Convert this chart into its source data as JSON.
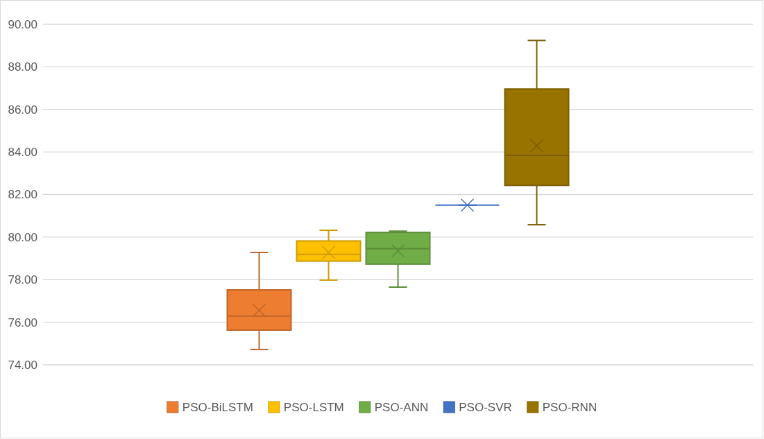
{
  "chart_data": {
    "type": "box",
    "categories": [
      null
    ],
    "series": [
      {
        "name": "PSO-BiLSTM",
        "color": "#ed7d31",
        "boxes": [
          {
            "low": 74.72,
            "q1": 75.63,
            "median": 76.29,
            "q3": 77.52,
            "high": 79.28,
            "mean": 76.56
          }
        ]
      },
      {
        "name": "PSO-LSTM",
        "color": "#ffc000",
        "boxes": [
          {
            "low": 77.98,
            "q1": 78.87,
            "median": 79.19,
            "q3": 79.82,
            "high": 80.32,
            "mean": 79.28
          }
        ]
      },
      {
        "name": "PSO-ANN",
        "color": "#70ad47",
        "boxes": [
          {
            "low": 77.65,
            "q1": 78.73,
            "median": 79.46,
            "q3": 80.22,
            "high": 80.28,
            "mean": 79.35
          }
        ]
      },
      {
        "name": "PSO-SVR",
        "color": "#4472c4",
        "boxes": [
          {
            "low": 81.5,
            "q1": 81.5,
            "median": 81.5,
            "q3": 81.5,
            "high": 81.5,
            "mean": 81.5
          }
        ]
      },
      {
        "name": "PSO-RNN",
        "color": "#997300",
        "boxes": [
          {
            "low": 80.58,
            "q1": 82.43,
            "median": 83.84,
            "q3": 86.96,
            "high": 89.24,
            "mean": 84.3
          }
        ]
      }
    ],
    "ylim": [
      74,
      90
    ],
    "yticks": [
      {
        "value": 74,
        "label": "74.00"
      },
      {
        "value": 76,
        "label": "76.00"
      },
      {
        "value": 78,
        "label": "78.00"
      },
      {
        "value": 80,
        "label": "80.00"
      },
      {
        "value": 82,
        "label": "82.00"
      },
      {
        "value": 84,
        "label": "84.00"
      },
      {
        "value": 86,
        "label": "86.00"
      },
      {
        "value": 88,
        "label": "88.00"
      },
      {
        "value": 90,
        "label": "90.00"
      }
    ],
    "grid": "y",
    "legend": "bottom",
    "marker": "cross"
  }
}
